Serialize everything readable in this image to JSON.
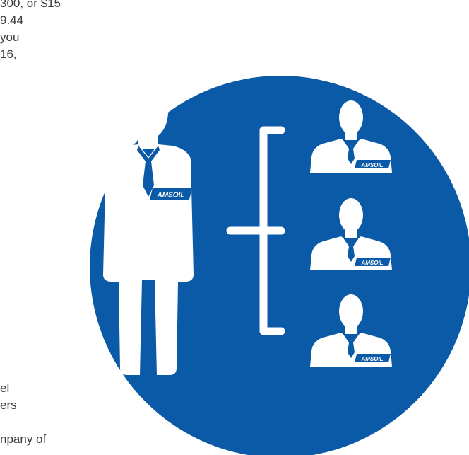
{
  "text_fragments": {
    "top_lines": [
      "300, or $15",
      "9.44",
      "you",
      "16,"
    ],
    "bottom_lines": [
      "el",
      "ers",
      "",
      "npany of"
    ]
  },
  "illustration": {
    "logo_text": "AMSOIL",
    "colors": {
      "circle": "#0b5aa7",
      "figure": "#ffffff",
      "body_text": "#3a3a3a"
    },
    "icons": [
      "circle-background",
      "main-person-icon",
      "bracket-connector-icon",
      "small-person-icon",
      "small-person-icon",
      "small-person-icon"
    ]
  }
}
